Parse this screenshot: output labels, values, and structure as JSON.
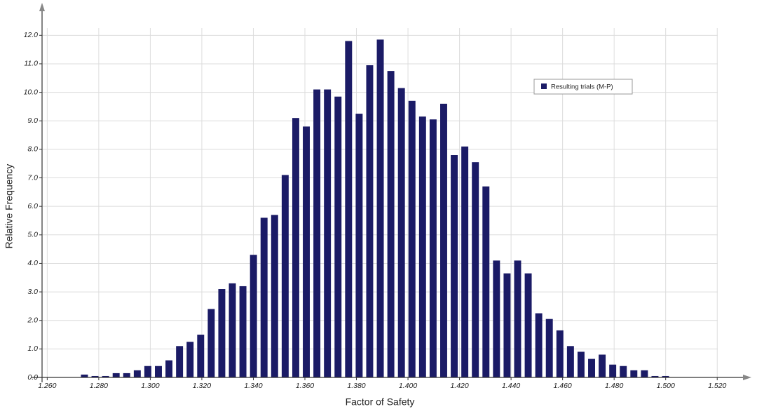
{
  "chart_data": {
    "type": "histogram",
    "xlabel": "Factor of Safety",
    "ylabel": "Relative Frequency",
    "bins": [
      1.2724,
      1.2765,
      1.2806,
      1.2847,
      1.2888,
      1.2929,
      1.297,
      1.3011,
      1.3052,
      1.3093,
      1.3134,
      1.3175,
      1.3216,
      1.3257,
      1.3298,
      1.3339,
      1.338,
      1.3421,
      1.3462,
      1.3503,
      1.3544,
      1.3585,
      1.3626,
      1.3667,
      1.3708,
      1.3749,
      1.379,
      1.3831,
      1.3872,
      1.3913,
      1.3954,
      1.3995,
      1.4036,
      1.4077,
      1.4118,
      1.4159,
      1.42,
      1.4241,
      1.4282,
      1.4323,
      1.4364,
      1.4405,
      1.4446,
      1.4487,
      1.4528,
      1.4569,
      1.461,
      1.4651,
      1.4692,
      1.4733,
      1.4774,
      1.4815,
      1.4856,
      1.4897,
      1.4938,
      1.4979,
      1.502
    ],
    "series": [
      {
        "name": "Resulting trials (M-P)",
        "color": "#1b1b66",
        "values": [
          0.1,
          0.05,
          0.05,
          0.15,
          0.15,
          0.25,
          0.4,
          0.4,
          0.6,
          1.1,
          1.25,
          1.5,
          2.4,
          3.1,
          3.3,
          3.2,
          4.3,
          5.6,
          5.7,
          7.1,
          9.1,
          8.8,
          10.1,
          10.1,
          9.85,
          11.8,
          9.25,
          10.95,
          11.85,
          10.75,
          10.15,
          9.7,
          9.15,
          9.05,
          9.6,
          7.8,
          8.1,
          7.55,
          6.7,
          4.1,
          3.65,
          4.1,
          3.65,
          2.25,
          2.05,
          1.65,
          1.1,
          0.9,
          0.65,
          0.8,
          0.45,
          0.4,
          0.25,
          0.25,
          0.05,
          0.05
        ]
      }
    ],
    "xlim": [
      1.258,
      1.53
    ],
    "ylim": [
      0,
      12.5
    ],
    "xticks": [
      {
        "value": 1.26,
        "label": "1.260"
      },
      {
        "value": 1.28,
        "label": "1.280"
      },
      {
        "value": 1.3,
        "label": "1.300"
      },
      {
        "value": 1.32,
        "label": "1.320"
      },
      {
        "value": 1.34,
        "label": "1.340"
      },
      {
        "value": 1.36,
        "label": "1.360"
      },
      {
        "value": 1.38,
        "label": "1.380"
      },
      {
        "value": 1.4,
        "label": "1.400"
      },
      {
        "value": 1.42,
        "label": "1.420"
      },
      {
        "value": 1.44,
        "label": "1.440"
      },
      {
        "value": 1.46,
        "label": "1.460"
      },
      {
        "value": 1.48,
        "label": "1.480"
      },
      {
        "value": 1.5,
        "label": "1.500"
      },
      {
        "value": 1.52,
        "label": "1.520"
      }
    ],
    "yticks": [
      {
        "value": 0,
        "label": "0.0"
      },
      {
        "value": 1,
        "label": "1.0"
      },
      {
        "value": 2,
        "label": "2.0"
      },
      {
        "value": 3,
        "label": "3.0"
      },
      {
        "value": 4,
        "label": "4.0"
      },
      {
        "value": 5,
        "label": "5.0"
      },
      {
        "value": 6,
        "label": "6.0"
      },
      {
        "value": 7,
        "label": "7.0"
      },
      {
        "value": 8,
        "label": "8.0"
      },
      {
        "value": 9,
        "label": "9.0"
      },
      {
        "value": 10,
        "label": "10.0"
      },
      {
        "value": 11,
        "label": "11.0"
      },
      {
        "value": 12,
        "label": "12.0"
      }
    ],
    "grid": true,
    "legend": "upper right"
  }
}
